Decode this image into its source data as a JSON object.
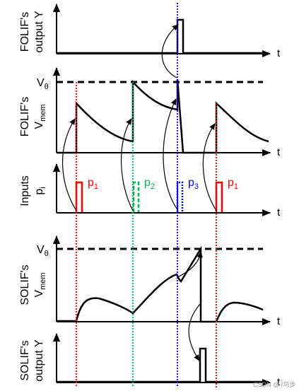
{
  "panels": {
    "folif_output": {
      "label_line1": "FOLIF's",
      "label_line2": "output Y",
      "axis_t": "t"
    },
    "folif_vmem": {
      "label_line1": "FOLIF's",
      "label_line2": "V",
      "label_sub": "mem",
      "threshold": "V",
      "threshold_sub": "θ",
      "axis_t": "t"
    },
    "inputs": {
      "label_line1": "Inputs",
      "label_line2": "p",
      "label_sub": "i",
      "axis_t": "t"
    },
    "solif_vmem": {
      "label_line1": "SOLIF's",
      "label_line2": "V",
      "label_sub": "mem",
      "threshold": "V",
      "threshold_sub": "θ",
      "axis_t": "t"
    },
    "solif_output": {
      "label_line1": "SOLIF's",
      "label_line2": "output Y",
      "axis_t": "t"
    }
  },
  "pulses": [
    {
      "name": "p",
      "sub": "1",
      "color": "#ff0000",
      "style": "solid"
    },
    {
      "name": "p",
      "sub": "2",
      "color": "#00b050",
      "style": "dashed"
    },
    {
      "name": "p",
      "sub": "3",
      "color": "#0000ff",
      "style": "dotted"
    },
    {
      "name": "p",
      "sub": "1",
      "color": "#ff0000",
      "style": "solid"
    }
  ],
  "colors": {
    "p1": "#ff0000",
    "p2": "#00b050",
    "p3": "#0000ff",
    "axis": "#000000"
  },
  "watermark": "CSDN @ ℓ鸟步"
}
